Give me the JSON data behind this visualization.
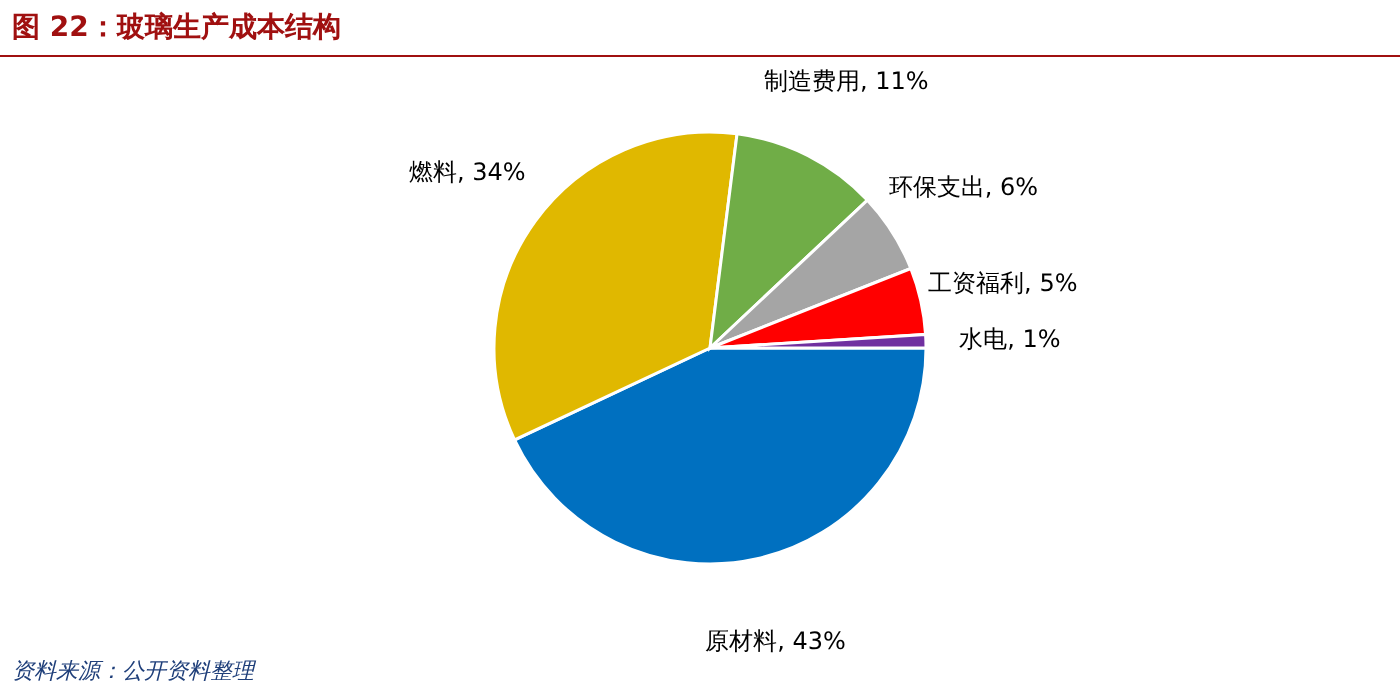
{
  "chart_data": {
    "type": "pie",
    "title": "图 22：玻璃生产成本结构",
    "categories": [
      "原材料",
      "燃料",
      "制造费用",
      "环保支出",
      "工资福利",
      "水电"
    ],
    "values": [
      43,
      34,
      11,
      6,
      5,
      1
    ],
    "value_labels": [
      "43%",
      "34%",
      "11%",
      "6%",
      "5%",
      "1%"
    ],
    "colors": [
      "#0070c0",
      "#e0b800",
      "#70ad47",
      "#a5a5a5",
      "#ff0000",
      "#7030a0"
    ],
    "legend": false,
    "annotations": [
      "资料来源：公开资料整理"
    ]
  }
}
